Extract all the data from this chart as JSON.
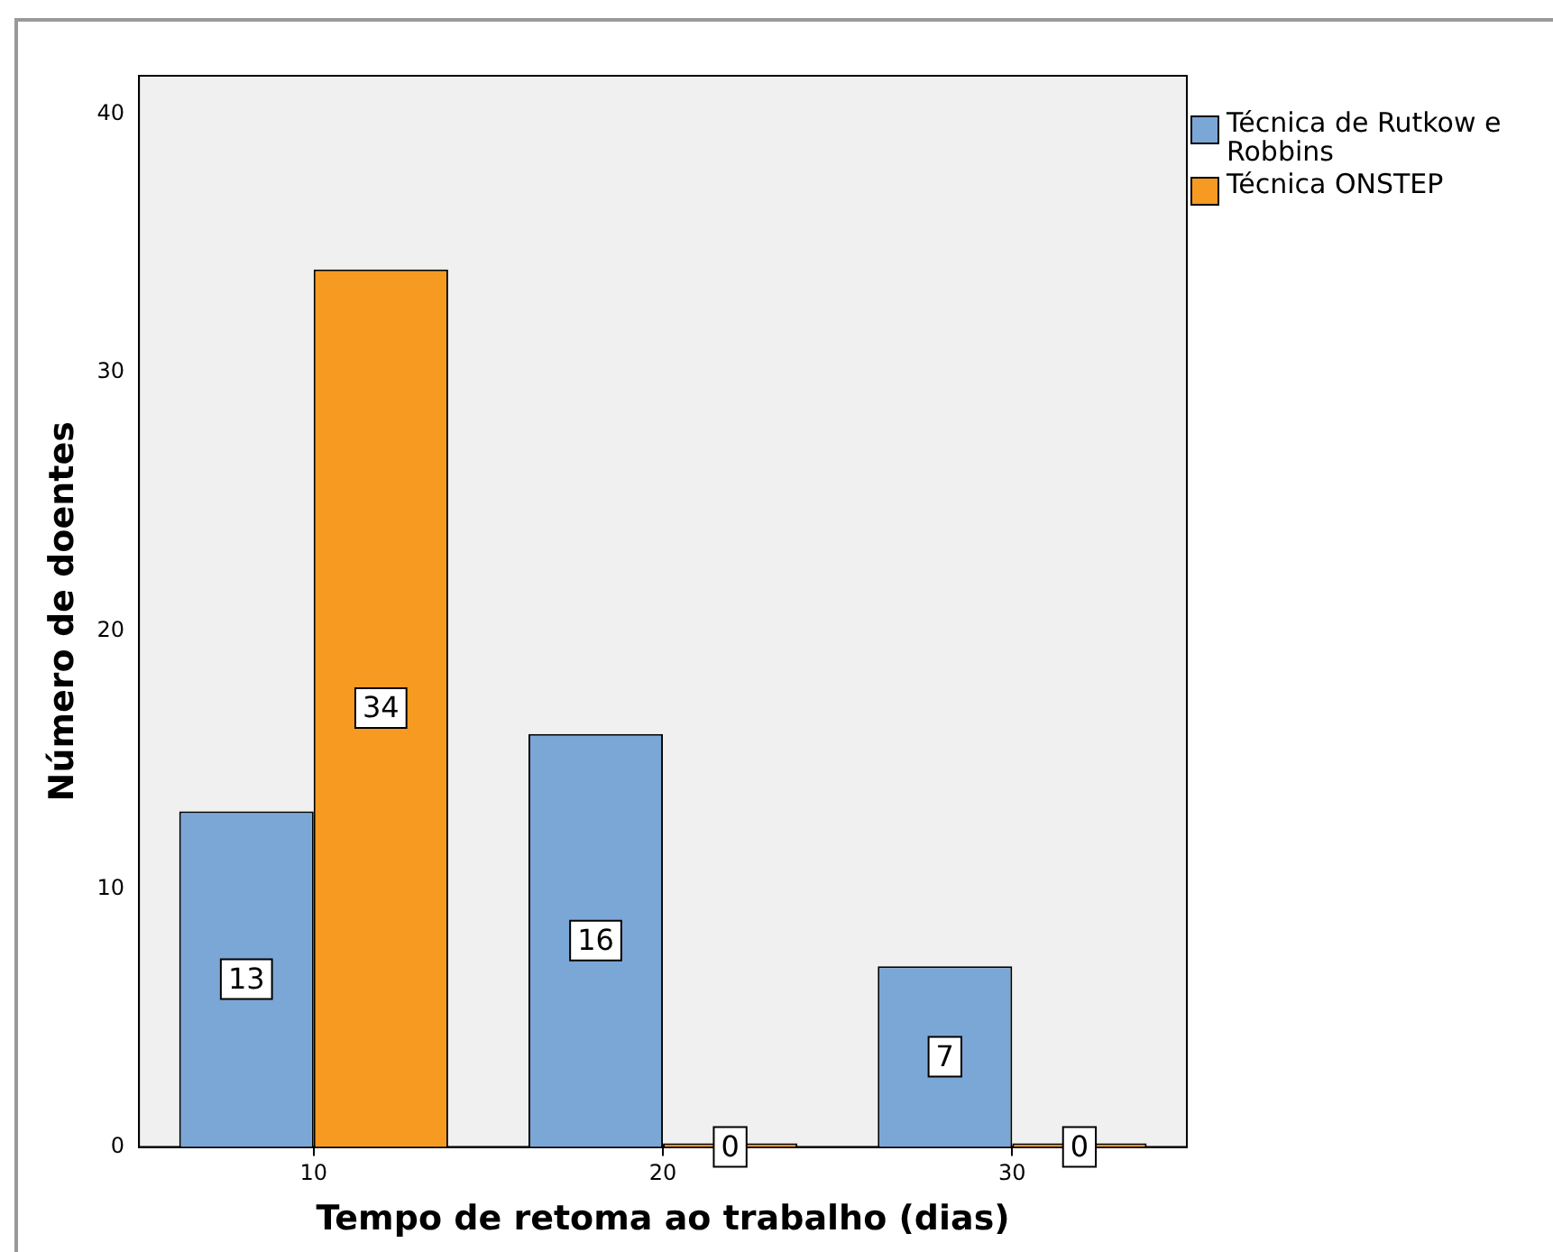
{
  "chart_data": {
    "type": "bar",
    "xlabel": "Tempo de retoma ao trabalho (dias)",
    "ylabel": "Número de doentes",
    "categories": [
      "10",
      "20",
      "30"
    ],
    "series": [
      {
        "name": "Técnica de Rutkow e Robbins",
        "color": "#7ba7d6",
        "values": [
          13,
          16,
          7
        ]
      },
      {
        "name": "Técnica ONSTEP",
        "color": "#f79a21",
        "values": [
          34,
          0,
          0
        ]
      }
    ],
    "ylim": [
      0,
      41.5
    ],
    "yticks": [
      0,
      10,
      20,
      30,
      40
    ],
    "grid": false,
    "legend": "right",
    "data_labels": true
  }
}
